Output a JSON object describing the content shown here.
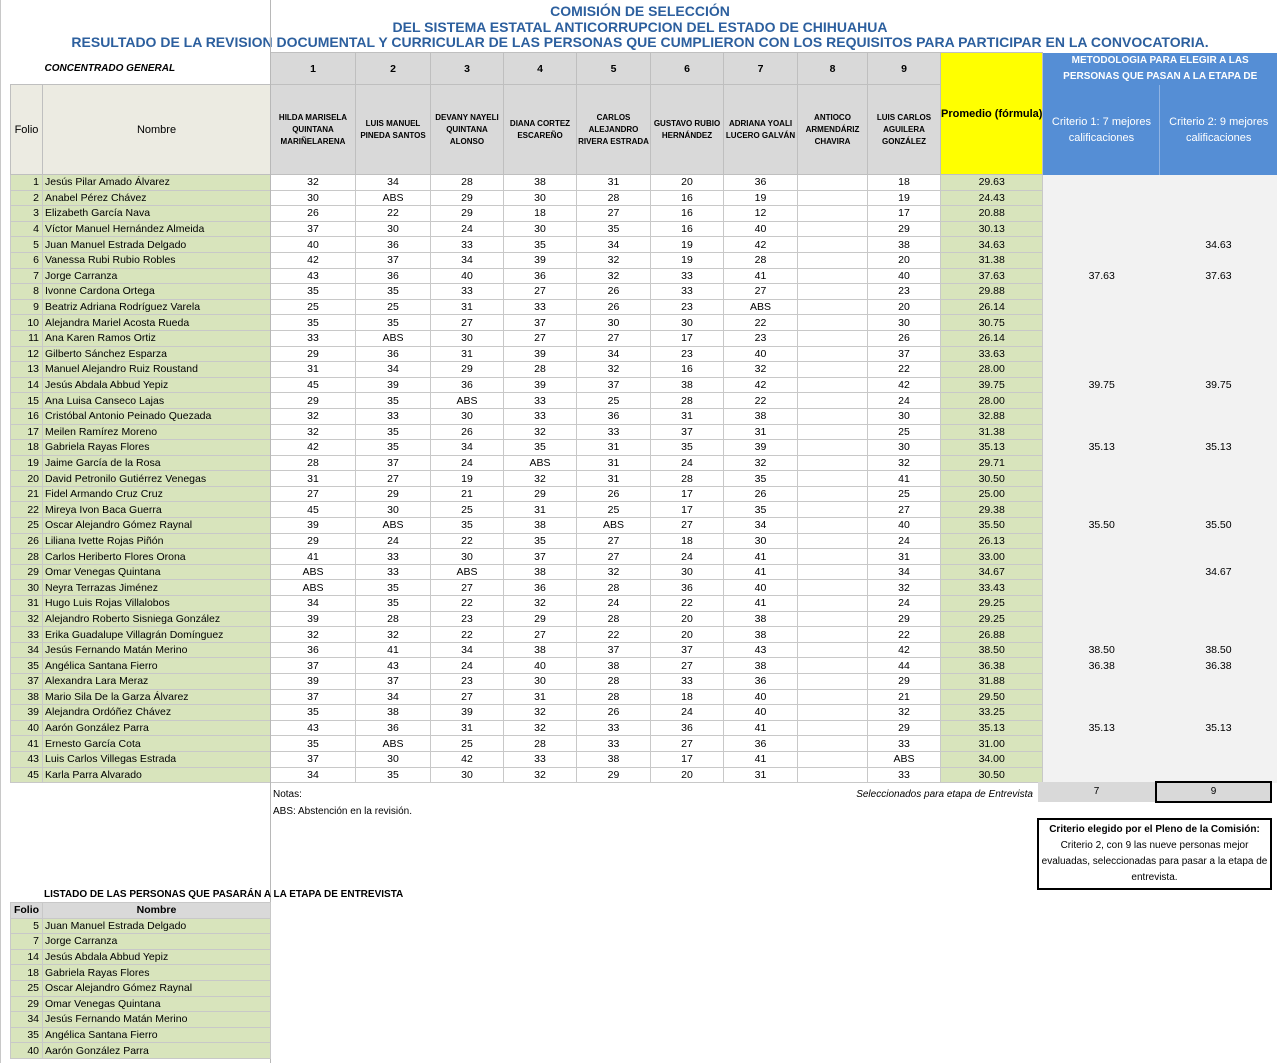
{
  "title": {
    "line1": "COMISIÓN DE SELECCIÓN",
    "line2": "DEL SISTEMA ESTATAL ANTICORRUPCION DEL ESTADO DE CHIHUAHUA",
    "line3": "RESULTADO DE LA REVISION DOCUMENTAL Y CURRICULAR DE LAS PERSONAS QUE CUMPLIERON CON LOS REQUISITOS PARA PARTICIPAR EN LA CONVOCATORIA."
  },
  "header": {
    "concentrado": "CONCENTRADO GENERAL",
    "folio": "Folio",
    "nombre": "Nombre",
    "promedio": "Promedio (fórmula)",
    "metodologia": "METODOLOGIA  PARA ELEGIR A LAS PERSONAS QUE  PASAN A LA ETAPA DE",
    "criterio1": "Criterio 1: 7 mejores calificaciones",
    "criterio2": "Criterio 2: 9 mejores calificaciones",
    "evaluators": [
      {
        "num": "1",
        "name": "HILDA MARISELA QUINTANA MARIÑELARENA"
      },
      {
        "num": "2",
        "name": "LUIS MANUEL PINEDA SANTOS"
      },
      {
        "num": "3",
        "name": "DEVANY NAYELI QUINTANA ALONSO"
      },
      {
        "num": "4",
        "name": "DIANA CORTEZ ESCAREÑO"
      },
      {
        "num": "5",
        "name": "CARLOS ALEJANDRO RIVERA ESTRADA"
      },
      {
        "num": "6",
        "name": "GUSTAVO RUBIO HERNÁNDEZ"
      },
      {
        "num": "7",
        "name": "ADRIANA YOALI LUCERO GALVÁN"
      },
      {
        "num": "8",
        "name": "ANTIOCO ARMENDÁRIZ CHAVIRA"
      },
      {
        "num": "9",
        "name": "LUIS CARLOS AGUILERA GONZÁLEZ"
      }
    ]
  },
  "rows": [
    [
      "1",
      "Jesús Pilar Amado Álvarez",
      "32",
      "34",
      "28",
      "38",
      "31",
      "20",
      "36",
      "",
      "18",
      "29.63",
      "",
      ""
    ],
    [
      "2",
      "Anabel Pérez Chávez",
      "30",
      "ABS",
      "29",
      "30",
      "28",
      "16",
      "19",
      "",
      "19",
      "24.43",
      "",
      ""
    ],
    [
      "3",
      "Elizabeth García Nava",
      "26",
      "22",
      "29",
      "18",
      "27",
      "16",
      "12",
      "",
      "17",
      "20.88",
      "",
      ""
    ],
    [
      "4",
      "Víctor Manuel Hernández Almeida",
      "37",
      "30",
      "24",
      "30",
      "35",
      "16",
      "40",
      "",
      "29",
      "30.13",
      "",
      ""
    ],
    [
      "5",
      "Juan Manuel Estrada Delgado",
      "40",
      "36",
      "33",
      "35",
      "34",
      "19",
      "42",
      "",
      "38",
      "34.63",
      "",
      "34.63"
    ],
    [
      "6",
      "Vanessa Rubi Rubio Robles",
      "42",
      "37",
      "34",
      "39",
      "32",
      "19",
      "28",
      "",
      "20",
      "31.38",
      "",
      ""
    ],
    [
      "7",
      "Jorge Carranza",
      "43",
      "36",
      "40",
      "36",
      "32",
      "33",
      "41",
      "",
      "40",
      "37.63",
      "37.63",
      "37.63"
    ],
    [
      "8",
      "Ivonne Cardona Ortega",
      "35",
      "35",
      "33",
      "27",
      "26",
      "33",
      "27",
      "",
      "23",
      "29.88",
      "",
      ""
    ],
    [
      "9",
      "Beatriz Adriana Rodríguez Varela",
      "25",
      "25",
      "31",
      "33",
      "26",
      "23",
      "ABS",
      "",
      "20",
      "26.14",
      "",
      ""
    ],
    [
      "10",
      "Alejandra Mariel Acosta Rueda",
      "35",
      "35",
      "27",
      "37",
      "30",
      "30",
      "22",
      "",
      "30",
      "30.75",
      "",
      ""
    ],
    [
      "11",
      "Ana Karen Ramos Ortiz",
      "33",
      "ABS",
      "30",
      "27",
      "27",
      "17",
      "23",
      "",
      "26",
      "26.14",
      "",
      ""
    ],
    [
      "12",
      "Gilberto Sánchez Esparza",
      "29",
      "36",
      "31",
      "39",
      "34",
      "23",
      "40",
      "",
      "37",
      "33.63",
      "",
      ""
    ],
    [
      "13",
      "Manuel Alejandro Ruiz Roustand",
      "31",
      "34",
      "29",
      "28",
      "32",
      "16",
      "32",
      "",
      "22",
      "28.00",
      "",
      ""
    ],
    [
      "14",
      "Jesús Abdala Abbud Yepiz",
      "45",
      "39",
      "36",
      "39",
      "37",
      "38",
      "42",
      "",
      "42",
      "39.75",
      "39.75",
      "39.75"
    ],
    [
      "15",
      "Ana Luisa Canseco Lajas",
      "29",
      "35",
      "ABS",
      "33",
      "25",
      "28",
      "22",
      "",
      "24",
      "28.00",
      "",
      ""
    ],
    [
      "16",
      "Cristóbal Antonio Peinado Quezada",
      "32",
      "33",
      "30",
      "33",
      "36",
      "31",
      "38",
      "",
      "30",
      "32.88",
      "",
      ""
    ],
    [
      "17",
      "Meilen Ramírez Moreno",
      "32",
      "35",
      "26",
      "32",
      "33",
      "37",
      "31",
      "",
      "25",
      "31.38",
      "",
      ""
    ],
    [
      "18",
      "Gabriela Rayas Flores",
      "42",
      "35",
      "34",
      "35",
      "31",
      "35",
      "39",
      "",
      "30",
      "35.13",
      "35.13",
      "35.13"
    ],
    [
      "19",
      "Jaime García de la Rosa",
      "28",
      "37",
      "24",
      "ABS",
      "31",
      "24",
      "32",
      "",
      "32",
      "29.71",
      "",
      ""
    ],
    [
      "20",
      "David Petronilo Gutiérrez Venegas",
      "31",
      "27",
      "19",
      "32",
      "31",
      "28",
      "35",
      "",
      "41",
      "30.50",
      "",
      ""
    ],
    [
      "21",
      "Fidel Armando Cruz Cruz",
      "27",
      "29",
      "21",
      "29",
      "26",
      "17",
      "26",
      "",
      "25",
      "25.00",
      "",
      ""
    ],
    [
      "22",
      "Mireya Ivon Baca Guerra",
      "45",
      "30",
      "25",
      "31",
      "25",
      "17",
      "35",
      "",
      "27",
      "29.38",
      "",
      ""
    ],
    [
      "25",
      "Oscar Alejandro Gómez Raynal",
      "39",
      "ABS",
      "35",
      "38",
      "ABS",
      "27",
      "34",
      "",
      "40",
      "35.50",
      "35.50",
      "35.50"
    ],
    [
      "26",
      "Liliana Ivette Rojas Piñón",
      "29",
      "24",
      "22",
      "35",
      "27",
      "18",
      "30",
      "",
      "24",
      "26.13",
      "",
      ""
    ],
    [
      "28",
      "Carlos Heriberto Flores Orona",
      "41",
      "33",
      "30",
      "37",
      "27",
      "24",
      "41",
      "",
      "31",
      "33.00",
      "",
      ""
    ],
    [
      "29",
      "Omar Venegas Quintana",
      "ABS",
      "33",
      "ABS",
      "38",
      "32",
      "30",
      "41",
      "",
      "34",
      "34.67",
      "",
      "34.67"
    ],
    [
      "30",
      "Neyra Terrazas Jiménez",
      "ABS",
      "35",
      "27",
      "36",
      "28",
      "36",
      "40",
      "",
      "32",
      "33.43",
      "",
      ""
    ],
    [
      "31",
      "Hugo Luis Rojas Villalobos",
      "34",
      "35",
      "22",
      "32",
      "24",
      "22",
      "41",
      "",
      "24",
      "29.25",
      "",
      ""
    ],
    [
      "32",
      "Alejandro Roberto Sisniega González",
      "39",
      "28",
      "23",
      "29",
      "28",
      "20",
      "38",
      "",
      "29",
      "29.25",
      "",
      ""
    ],
    [
      "33",
      "Erika Guadalupe Villagrán Domínguez",
      "32",
      "32",
      "22",
      "27",
      "22",
      "20",
      "38",
      "",
      "22",
      "26.88",
      "",
      ""
    ],
    [
      "34",
      "Jesús Fernando Matán Merino",
      "36",
      "41",
      "34",
      "38",
      "37",
      "37",
      "43",
      "",
      "42",
      "38.50",
      "38.50",
      "38.50"
    ],
    [
      "35",
      "Angélica Santana Fierro",
      "37",
      "43",
      "24",
      "40",
      "38",
      "27",
      "38",
      "",
      "44",
      "36.38",
      "36.38",
      "36.38"
    ],
    [
      "37",
      "Alexandra Lara Meraz",
      "39",
      "37",
      "23",
      "30",
      "28",
      "33",
      "36",
      "",
      "29",
      "31.88",
      "",
      ""
    ],
    [
      "38",
      "Mario Sila De la Garza Álvarez",
      "37",
      "34",
      "27",
      "31",
      "28",
      "18",
      "40",
      "",
      "21",
      "29.50",
      "",
      ""
    ],
    [
      "39",
      "Alejandra Ordóñez Chávez",
      "35",
      "38",
      "39",
      "32",
      "26",
      "24",
      "40",
      "",
      "32",
      "33.25",
      "",
      ""
    ],
    [
      "40",
      "Aarón González Parra",
      "43",
      "36",
      "31",
      "32",
      "33",
      "36",
      "41",
      "",
      "29",
      "35.13",
      "35.13",
      "35.13"
    ],
    [
      "41",
      "Ernesto García Cota",
      "35",
      "ABS",
      "25",
      "28",
      "33",
      "27",
      "36",
      "",
      "33",
      "31.00",
      "",
      ""
    ],
    [
      "43",
      "Luis Carlos Villegas Estrada",
      "37",
      "30",
      "42",
      "33",
      "38",
      "17",
      "41",
      "",
      "ABS",
      "34.00",
      "",
      ""
    ],
    [
      "45",
      "Karla Parra Alvarado",
      "34",
      "35",
      "30",
      "32",
      "29",
      "20",
      "31",
      "",
      "33",
      "30.50",
      "",
      ""
    ]
  ],
  "notes": {
    "label": "Notas:",
    "abs": "ABS: Abstención en la revisión."
  },
  "selected": {
    "label": "Seleccionados para etapa de Entrevista",
    "criterio1_count": "7",
    "criterio2_count": "9"
  },
  "chosen": {
    "title": "Criterio elegido por el Pleno de la Comisión:",
    "text": "Criterio 2, con 9 las nueve personas mejor evaluadas, seleccionadas para pasar a la etapa de entrevista."
  },
  "listing": {
    "title": "LISTADO DE LAS PERSONAS QUE PASARÁN A LA ETAPA DE ENTREVISTA",
    "folio": "Folio",
    "nombre": "Nombre",
    "rows": [
      [
        "5",
        "Juan Manuel Estrada Delgado"
      ],
      [
        "7",
        "Jorge Carranza"
      ],
      [
        "14",
        "Jesús Abdala Abbud Yepiz"
      ],
      [
        "18",
        "Gabriela Rayas Flores"
      ],
      [
        "25",
        "Oscar Alejandro Gómez Raynal"
      ],
      [
        "29",
        "Omar Venegas Quintana"
      ],
      [
        "34",
        "Jesús Fernando Matán Merino"
      ],
      [
        "35",
        "Angélica Santana Fierro"
      ],
      [
        "40",
        "Aarón González Parra"
      ]
    ]
  },
  "colors": {
    "title": "#2c5f9e",
    "header_gray": "#d9d9d9",
    "promedio_yellow": "#ffff00",
    "metodologia_blue": "#558ed5",
    "name_green": "#d8e4bc",
    "criteria_bg": "#f2f2f2"
  }
}
